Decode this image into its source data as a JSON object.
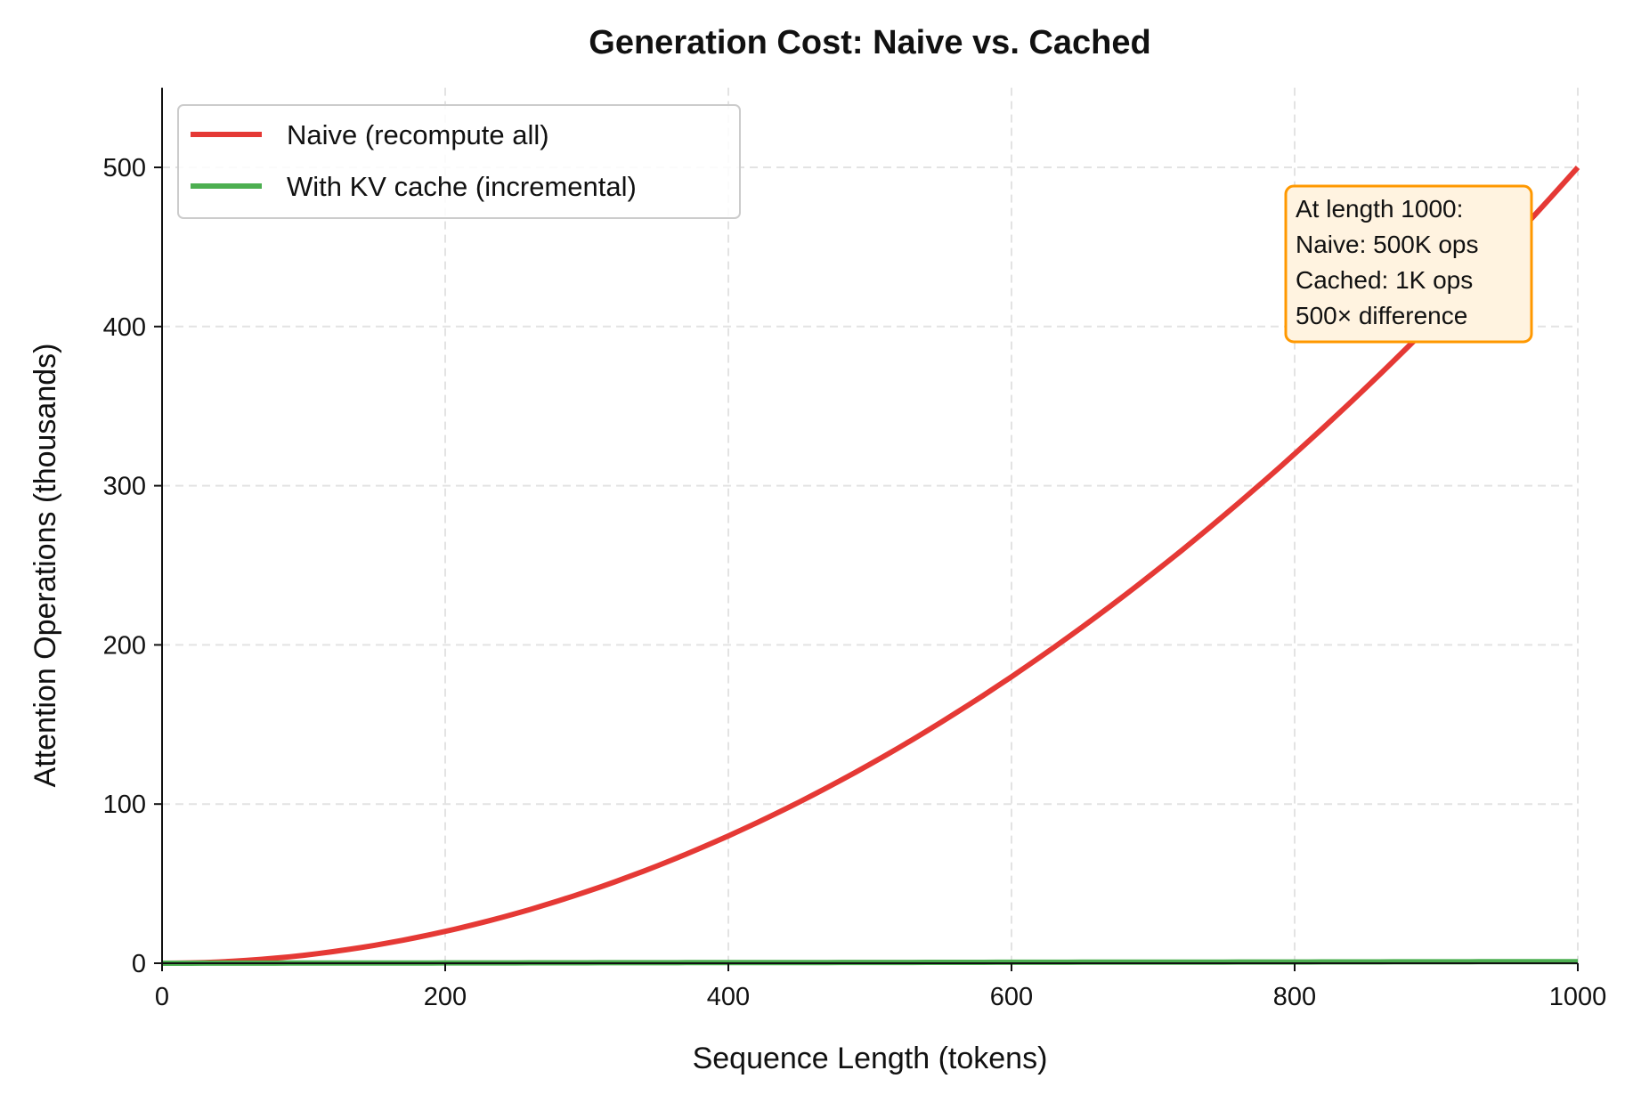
{
  "chart_data": {
    "type": "line",
    "title": "Generation Cost: Naive vs. Cached",
    "xlabel": "Sequence Length (tokens)",
    "ylabel": "Attention Operations (thousands)",
    "xlim": [
      0,
      1000
    ],
    "ylim": [
      0,
      550
    ],
    "xticks": [
      0,
      200,
      400,
      600,
      800,
      1000
    ],
    "yticks": [
      0,
      100,
      200,
      300,
      400,
      500
    ],
    "grid": true,
    "legend_placement": "top-left",
    "x": [
      0,
      50,
      100,
      150,
      200,
      250,
      300,
      350,
      400,
      450,
      500,
      550,
      600,
      650,
      700,
      750,
      800,
      850,
      900,
      950,
      1000
    ],
    "series": [
      {
        "name": "Naive (recompute all)",
        "color": "#e53935",
        "values": [
          0,
          1.25,
          5,
          11.25,
          20,
          31.25,
          45,
          61.25,
          80,
          101.25,
          125,
          151.25,
          180,
          211.25,
          245,
          281.25,
          320,
          361.25,
          405,
          451.25,
          500
        ]
      },
      {
        "name": "With KV cache (incremental)",
        "color": "#4caf50",
        "values": [
          0,
          0.05,
          0.1,
          0.15,
          0.2,
          0.25,
          0.3,
          0.35,
          0.4,
          0.45,
          0.5,
          0.55,
          0.6,
          0.65,
          0.7,
          0.75,
          0.8,
          0.85,
          0.9,
          0.95,
          1.0
        ]
      }
    ],
    "annotation": {
      "lines": [
        "At length 1000:",
        "Naive: 500K ops",
        "Cached: 1K ops",
        "500× difference"
      ],
      "border_color": "#ff9800",
      "fill_color": "#fff3e0"
    }
  }
}
